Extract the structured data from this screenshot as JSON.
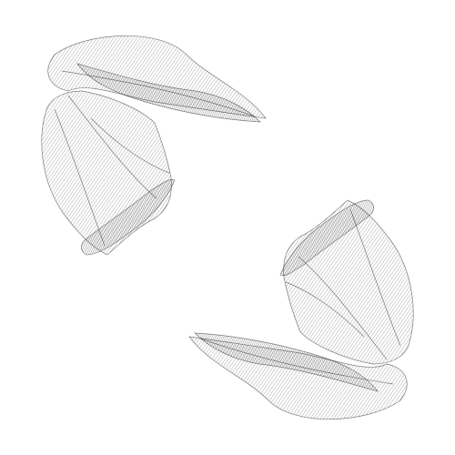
{
  "image": {
    "kind": "abstract-line-art",
    "background_color": "#ffffff",
    "stroke_color": "#1a1a1a",
    "shapes": [
      {
        "name": "upper-left-ribbon-form",
        "description_visible": ""
      },
      {
        "name": "lower-right-ribbon-form",
        "description_visible": ""
      }
    ]
  }
}
